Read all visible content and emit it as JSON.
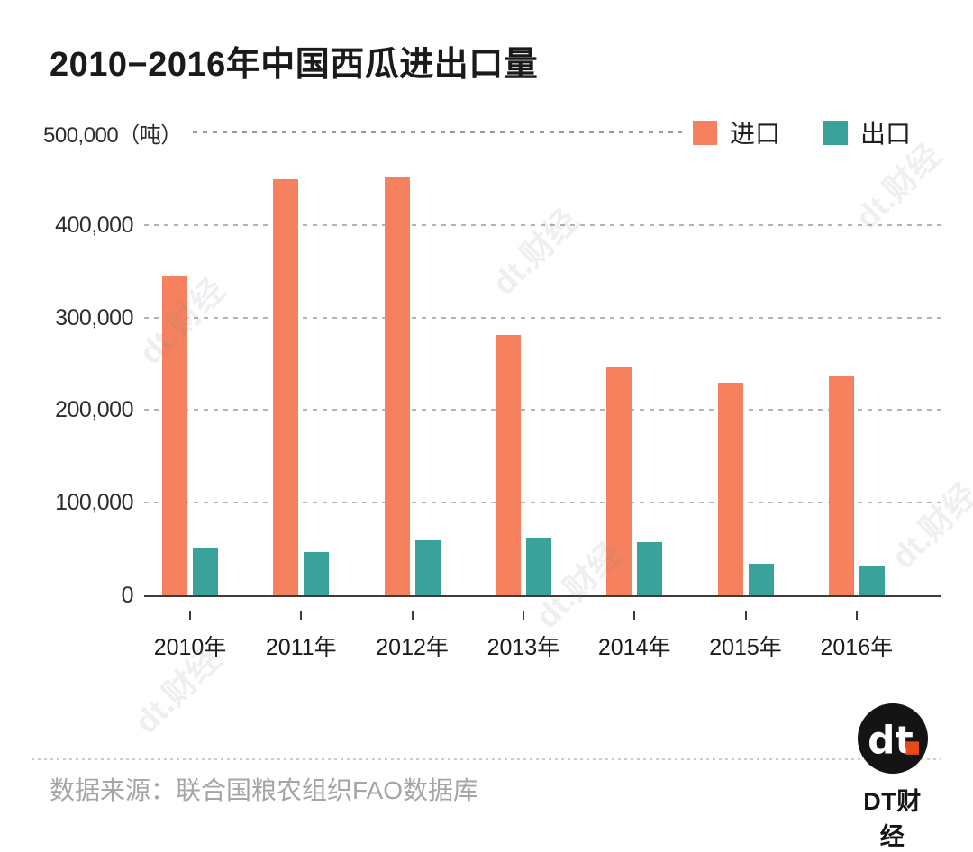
{
  "chart_data": {
    "type": "bar",
    "title": "2010−2016年中国西瓜进出口量",
    "unit_label": "500,000（吨）",
    "categories": [
      "2010年",
      "2011年",
      "2012年",
      "2013年",
      "2014年",
      "2015年",
      "2016年"
    ],
    "series": [
      {
        "name": "进口",
        "color": "#F5815F",
        "values": [
          345000,
          449000,
          452000,
          281000,
          247000,
          230000,
          236000
        ]
      },
      {
        "name": "出口",
        "color": "#3BA29A",
        "values": [
          52000,
          47000,
          59000,
          62000,
          57000,
          34000,
          31000
        ]
      }
    ],
    "ylabel": "吨",
    "ylim": [
      0,
      500000
    ],
    "ytick_step": 100000,
    "ytick_labels_desc": [
      "400,000",
      "300,000",
      "200,000",
      "100,000",
      "0"
    ],
    "grid": "horizontal-dashed",
    "legend_position": "top-right"
  },
  "footer": {
    "source": "数据来源：联合国粮农组织FAO数据库",
    "brand_name": "DT财经",
    "logo_text": "dt"
  },
  "watermark": {
    "text": "dt.财经"
  },
  "colors": {
    "import_bar": "#F5815F",
    "export_bar": "#3BA29A",
    "logo_dot": "#E8481C",
    "gridline": "#9A9A9A",
    "axis": "#3C3C3C",
    "title_text": "#1A1A1A",
    "source_text": "#A5A5A5"
  }
}
